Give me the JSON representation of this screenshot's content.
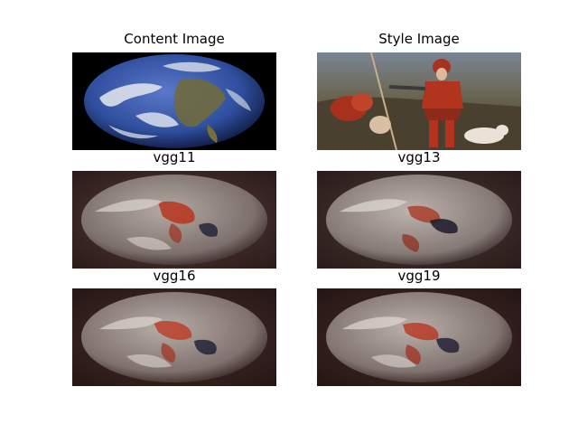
{
  "panels": [
    {
      "id": "content",
      "title": "Content Image"
    },
    {
      "id": "style",
      "title": "Style Image"
    },
    {
      "id": "vgg11",
      "title": "vgg11"
    },
    {
      "id": "vgg13",
      "title": "vgg13"
    },
    {
      "id": "vgg16",
      "title": "vgg16"
    },
    {
      "id": "vgg19",
      "title": "vgg19"
    }
  ],
  "colors": {
    "content_bg": "#000000",
    "ocean": "#2f4f9e",
    "land": "#6f6a3e",
    "clouds": "#e6e9ef",
    "style_bg": "#5d5648",
    "style_red": "#b2341f",
    "stylized_bg": "#2d1f1d",
    "stylized_globe": "#8b7e7a",
    "stylized_red": "#b8341f"
  }
}
